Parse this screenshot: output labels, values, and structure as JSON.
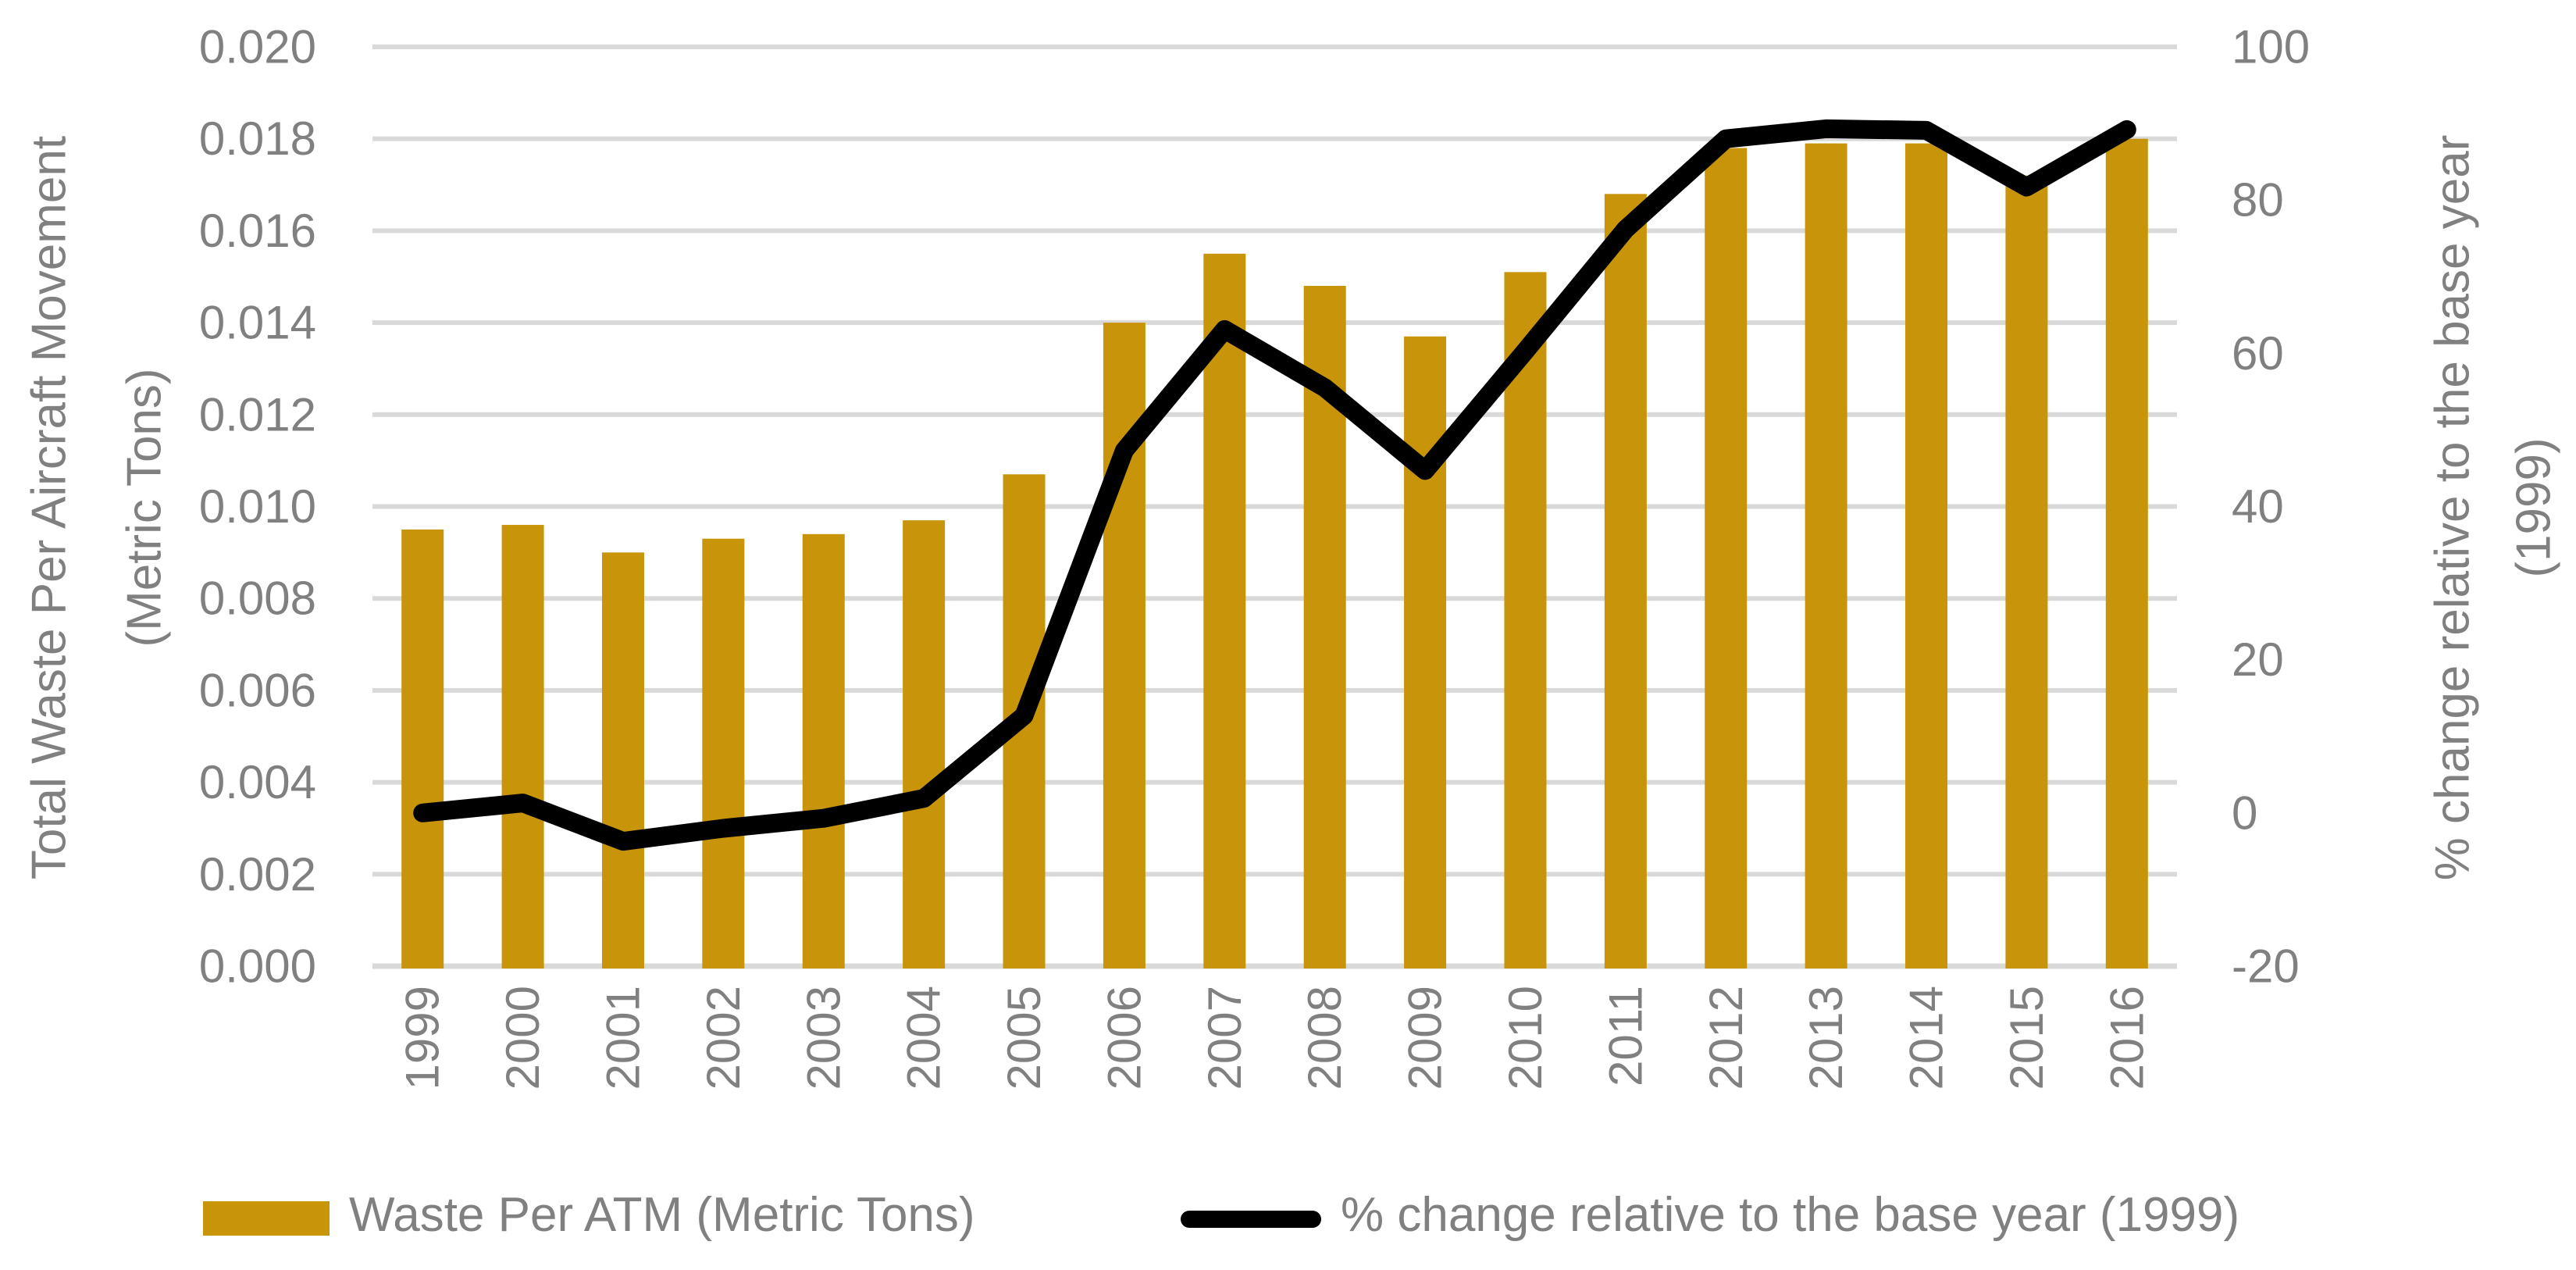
{
  "chart_data": {
    "type": "combo-bar-line",
    "title": "",
    "categories": [
      "1999",
      "2000",
      "2001",
      "2002",
      "2003",
      "2004",
      "2005",
      "2006",
      "2007",
      "2008",
      "2009",
      "2010",
      "2011",
      "2012",
      "2013",
      "2014",
      "2015",
      "2016"
    ],
    "series": [
      {
        "name": "Waste Per ATM (Metric Tons)",
        "type": "bar",
        "axis": "left",
        "color": "#C8940A",
        "values": [
          0.0095,
          0.0096,
          0.009,
          0.0093,
          0.0094,
          0.0097,
          0.0107,
          0.014,
          0.0155,
          0.0148,
          0.0137,
          0.0151,
          0.0168,
          0.0178,
          0.0179,
          0.0179,
          0.0172,
          0.018
        ]
      },
      {
        "name": "% change relative to the base year (1999)",
        "type": "line",
        "axis": "right",
        "color": "#000000",
        "values": [
          0,
          1.3,
          -3.7,
          -2.0,
          -0.7,
          1.9,
          12.7,
          47.3,
          63.1,
          55.5,
          44.7,
          60.3,
          76.2,
          88.0,
          89.3,
          89.1,
          81.7,
          89.2
        ]
      }
    ],
    "left_axis": {
      "title_line1": "Total Waste Per Aircraft Movement",
      "title_line2": "(Metric Tons)",
      "min": 0.0,
      "max": 0.02,
      "step": 0.002,
      "tick_labels": [
        "0.000",
        "0.002",
        "0.004",
        "0.006",
        "0.008",
        "0.010",
        "0.012",
        "0.014",
        "0.016",
        "0.018",
        "0.020"
      ]
    },
    "right_axis": {
      "title_line1": "% change relative to the base year",
      "title_line2": "(1999)",
      "min": -20,
      "max": 100,
      "step": 20,
      "tick_labels": [
        "-20",
        "0",
        "20",
        "40",
        "60",
        "80",
        "100"
      ]
    },
    "grid": "horizontal-only",
    "legend_position": "bottom"
  },
  "colors": {
    "bar": "#C8940A",
    "line": "#000000",
    "grid": "#D9D9D9",
    "text": "#808080",
    "background": "#FFFFFF"
  }
}
